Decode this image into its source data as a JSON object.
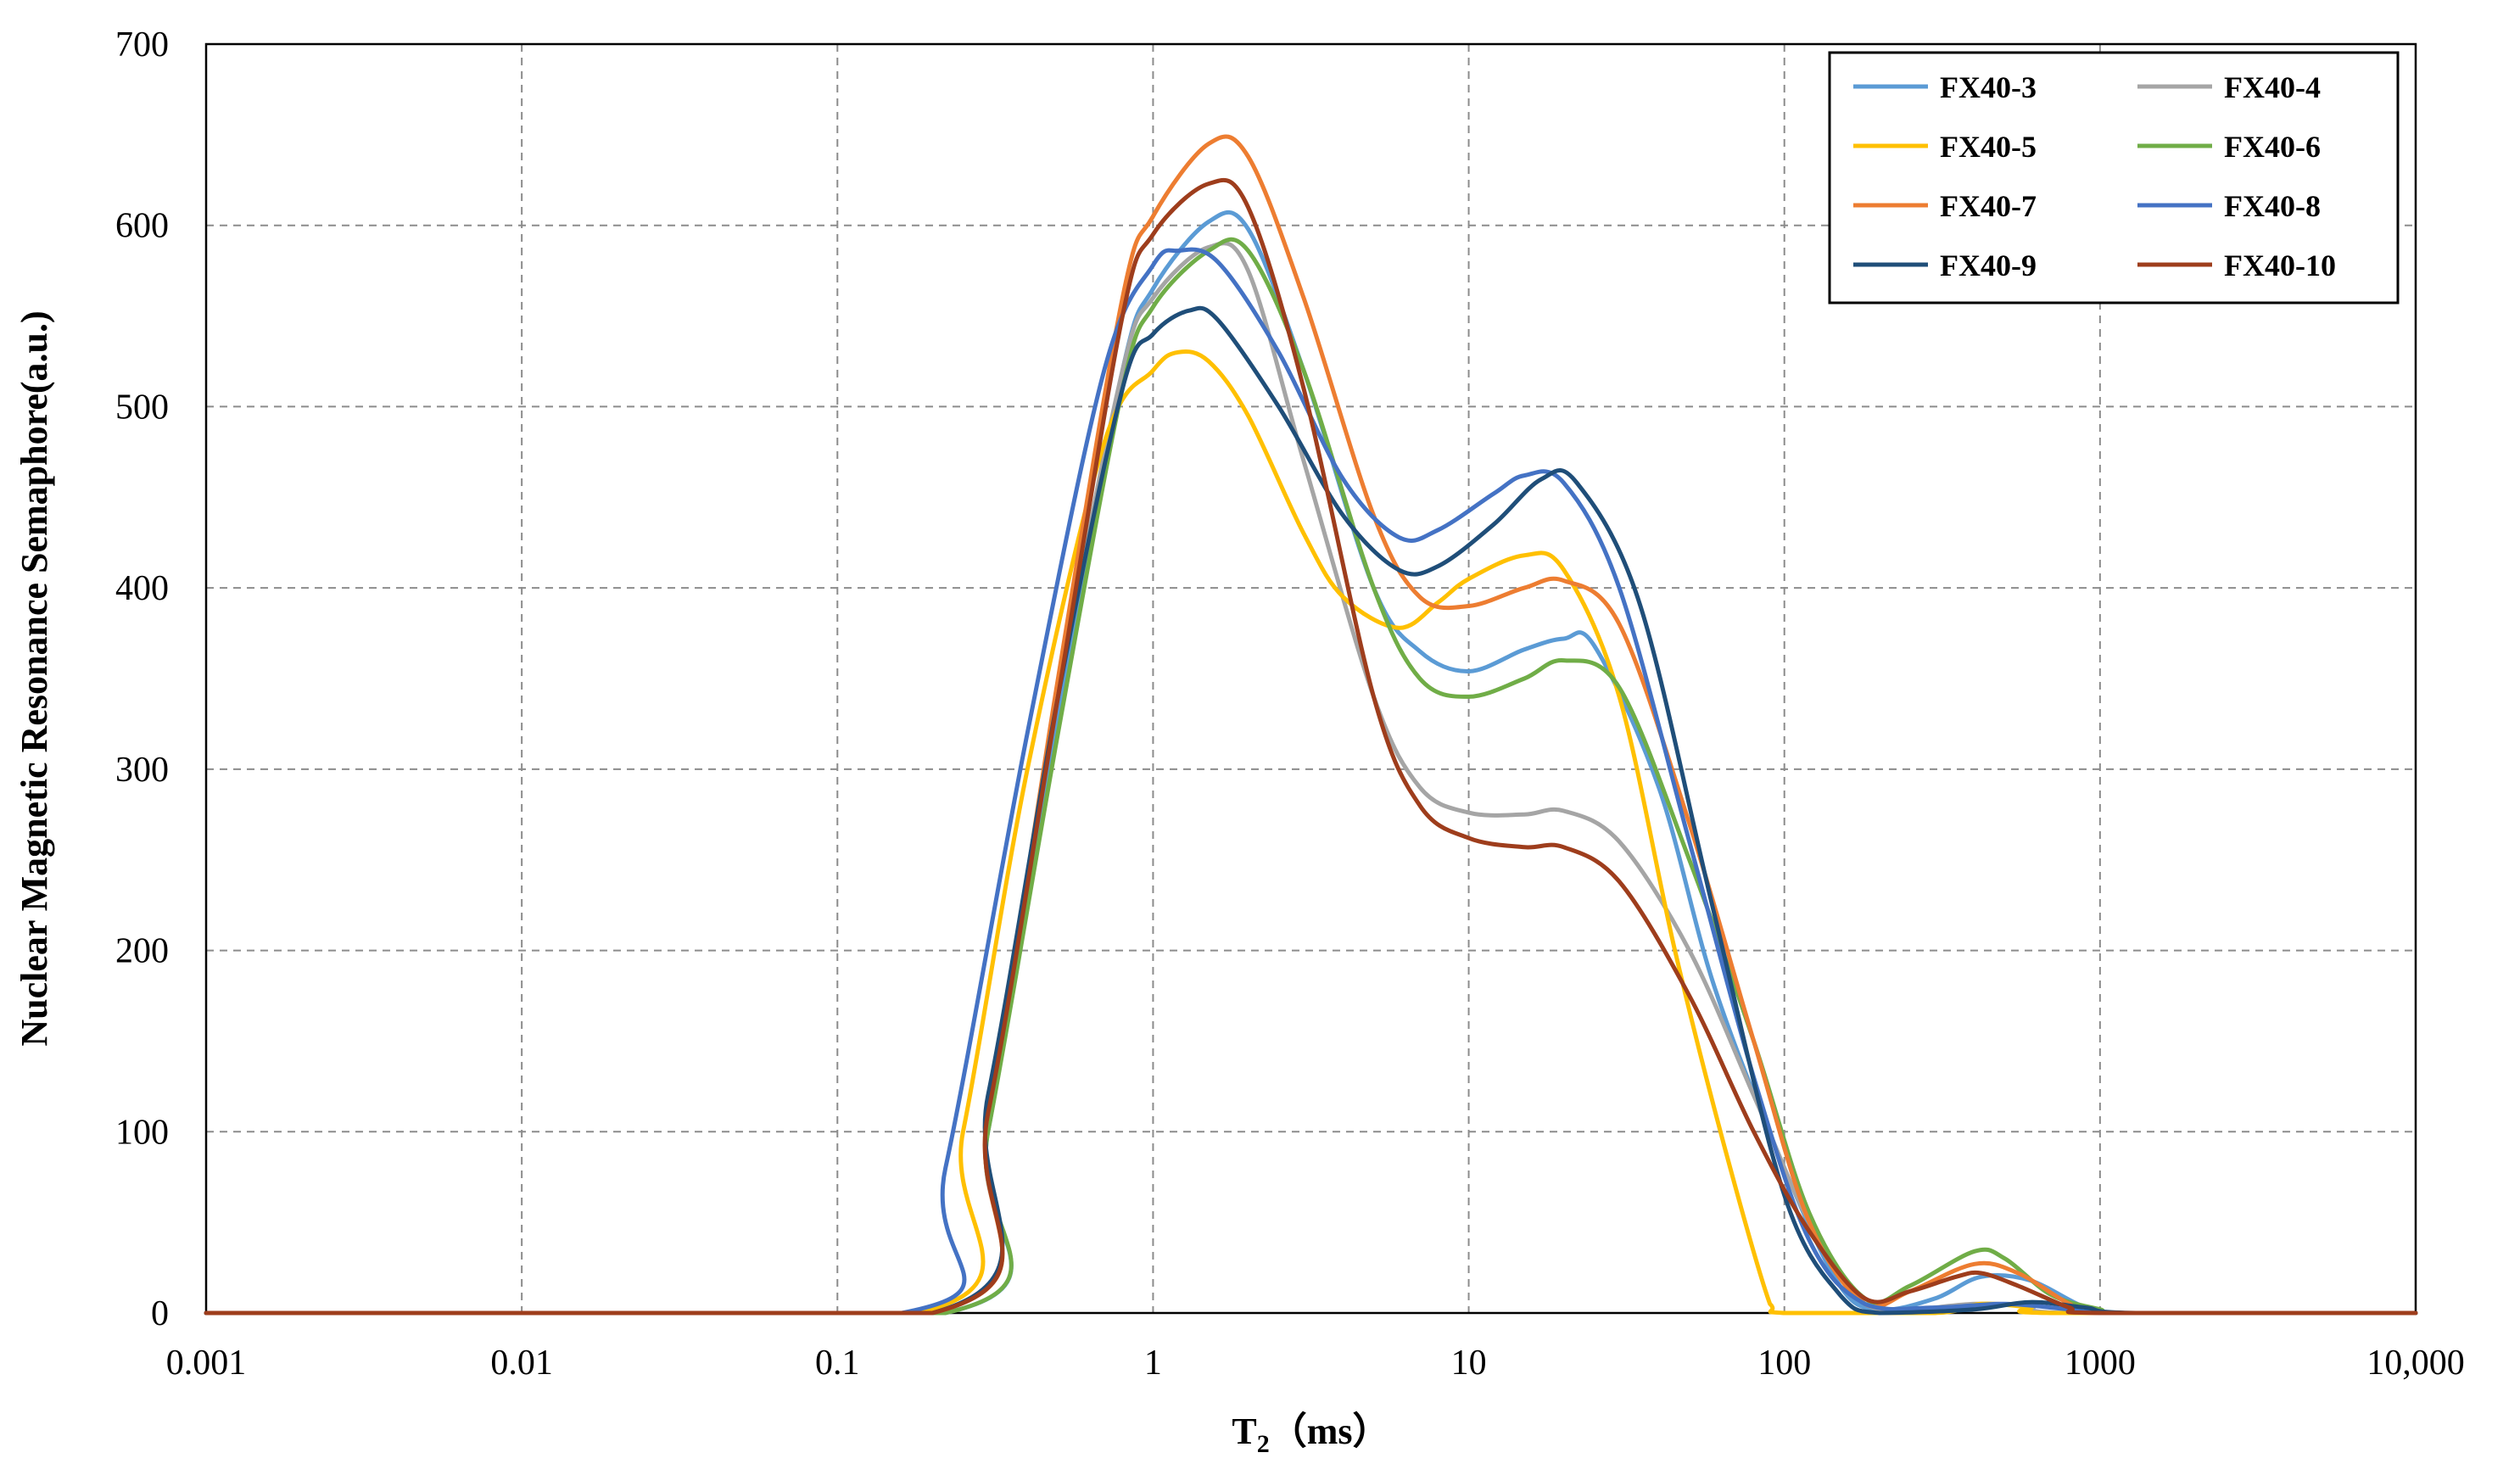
{
  "chart_data": {
    "type": "line",
    "xscale": "log",
    "xlabel": "T",
    "xlabel_sub": "2",
    "xlabel_unit": "（ms）",
    "ylabel": "Nuclear Magnetic Resonance Semaphore(a.u.)",
    "xlim": [
      0.001,
      10000
    ],
    "ylim": [
      0,
      700
    ],
    "x_ticks": [
      0.001,
      0.01,
      0.1,
      1,
      10,
      100,
      1000,
      10000
    ],
    "x_tick_labels": [
      "0.001",
      "0.01",
      "0.1",
      "1",
      "10",
      "100",
      "1000",
      "10,000"
    ],
    "y_ticks": [
      0,
      100,
      200,
      300,
      400,
      500,
      600,
      700
    ],
    "y_tick_labels": [
      "0",
      "100",
      "200",
      "300",
      "400",
      "500",
      "600",
      "700"
    ],
    "grid": true,
    "legend_position": "top-right",
    "series": [
      {
        "name": "FX40-3",
        "color": "#5b9bd5",
        "points": [
          [
            0.001,
            0
          ],
          [
            0.22,
            0
          ],
          [
            0.3,
            100
          ],
          [
            0.5,
            330
          ],
          [
            0.8,
            520
          ],
          [
            1,
            565
          ],
          [
            1.5,
            602
          ],
          [
            2,
            598
          ],
          [
            3,
            520
          ],
          [
            5,
            400
          ],
          [
            7,
            365
          ],
          [
            10,
            354
          ],
          [
            15,
            366
          ],
          [
            20,
            372
          ],
          [
            25,
            368
          ],
          [
            40,
            290
          ],
          [
            60,
            180
          ],
          [
            100,
            80
          ],
          [
            150,
            15
          ],
          [
            200,
            2
          ],
          [
            300,
            8
          ],
          [
            420,
            20
          ],
          [
            600,
            18
          ],
          [
            900,
            3
          ],
          [
            1200,
            0
          ],
          [
            10000,
            0
          ]
        ]
      },
      {
        "name": "FX40-4",
        "color": "#a5a5a5",
        "points": [
          [
            0.001,
            0
          ],
          [
            0.2,
            0
          ],
          [
            0.3,
            110
          ],
          [
            0.5,
            340
          ],
          [
            0.8,
            520
          ],
          [
            1,
            560
          ],
          [
            1.5,
            588
          ],
          [
            2,
            575
          ],
          [
            3,
            470
          ],
          [
            5,
            340
          ],
          [
            7,
            290
          ],
          [
            10,
            276
          ],
          [
            15,
            275
          ],
          [
            20,
            277
          ],
          [
            30,
            260
          ],
          [
            50,
            200
          ],
          [
            80,
            120
          ],
          [
            120,
            50
          ],
          [
            180,
            5
          ],
          [
            250,
            2
          ],
          [
            400,
            5
          ],
          [
            600,
            4
          ],
          [
            800,
            0
          ],
          [
            10000,
            0
          ]
        ]
      },
      {
        "name": "FX40-5",
        "color": "#ffc000",
        "points": [
          [
            0.001,
            0
          ],
          [
            0.18,
            0
          ],
          [
            0.25,
            100
          ],
          [
            0.4,
            300
          ],
          [
            0.7,
            480
          ],
          [
            1,
            520
          ],
          [
            1.2,
            530
          ],
          [
            1.5,
            525
          ],
          [
            2,
            495
          ],
          [
            3,
            430
          ],
          [
            4,
            395
          ],
          [
            6,
            378
          ],
          [
            8,
            392
          ],
          [
            10,
            405
          ],
          [
            15,
            418
          ],
          [
            20,
            410
          ],
          [
            30,
            340
          ],
          [
            45,
            200
          ],
          [
            65,
            90
          ],
          [
            90,
            5
          ],
          [
            100,
            0
          ],
          [
            300,
            0
          ],
          [
            420,
            5
          ],
          [
            600,
            3
          ],
          [
            700,
            0
          ],
          [
            10000,
            0
          ]
        ]
      },
      {
        "name": "FX40-6",
        "color": "#70ad47",
        "points": [
          [
            0.001,
            0
          ],
          [
            0.22,
            0
          ],
          [
            0.3,
            100
          ],
          [
            0.5,
            320
          ],
          [
            0.8,
            510
          ],
          [
            1,
            555
          ],
          [
            1.5,
            586
          ],
          [
            2,
            586
          ],
          [
            3,
            520
          ],
          [
            5,
            400
          ],
          [
            7,
            350
          ],
          [
            10,
            340
          ],
          [
            15,
            350
          ],
          [
            20,
            360
          ],
          [
            30,
            345
          ],
          [
            50,
            250
          ],
          [
            80,
            150
          ],
          [
            120,
            55
          ],
          [
            180,
            8
          ],
          [
            250,
            15
          ],
          [
            400,
            34
          ],
          [
            500,
            30
          ],
          [
            700,
            10
          ],
          [
            1000,
            2
          ],
          [
            1200,
            0
          ],
          [
            10000,
            0
          ]
        ]
      },
      {
        "name": "FX40-7",
        "color": "#ed7d31",
        "points": [
          [
            0.001,
            0
          ],
          [
            0.2,
            0
          ],
          [
            0.3,
            110
          ],
          [
            0.5,
            350
          ],
          [
            0.8,
            560
          ],
          [
            1,
            605
          ],
          [
            1.5,
            645
          ],
          [
            2,
            638
          ],
          [
            3,
            560
          ],
          [
            5,
            440
          ],
          [
            7,
            395
          ],
          [
            10,
            390
          ],
          [
            15,
            400
          ],
          [
            20,
            404
          ],
          [
            30,
            380
          ],
          [
            50,
            270
          ],
          [
            80,
            150
          ],
          [
            120,
            50
          ],
          [
            180,
            5
          ],
          [
            250,
            12
          ],
          [
            400,
            27
          ],
          [
            550,
            22
          ],
          [
            800,
            5
          ],
          [
            1000,
            0
          ],
          [
            10000,
            0
          ]
        ]
      },
      {
        "name": "FX40-8",
        "color": "#4472c4",
        "points": [
          [
            0.001,
            0
          ],
          [
            0.16,
            0
          ],
          [
            0.22,
            80
          ],
          [
            0.4,
            320
          ],
          [
            0.7,
            520
          ],
          [
            1,
            578
          ],
          [
            1.2,
            586
          ],
          [
            1.6,
            580
          ],
          [
            2.5,
            530
          ],
          [
            4,
            460
          ],
          [
            6,
            428
          ],
          [
            8,
            432
          ],
          [
            12,
            452
          ],
          [
            15,
            462
          ],
          [
            20,
            458
          ],
          [
            30,
            400
          ],
          [
            50,
            260
          ],
          [
            80,
            130
          ],
          [
            120,
            40
          ],
          [
            180,
            5
          ],
          [
            300,
            3
          ],
          [
            500,
            5
          ],
          [
            800,
            2
          ],
          [
            1200,
            0
          ],
          [
            10000,
            0
          ]
        ]
      },
      {
        "name": "FX40-9",
        "color": "#1f4e79",
        "points": [
          [
            0.001,
            0
          ],
          [
            0.2,
            0
          ],
          [
            0.3,
            120
          ],
          [
            0.5,
            340
          ],
          [
            0.8,
            510
          ],
          [
            1,
            540
          ],
          [
            1.3,
            553
          ],
          [
            1.6,
            548
          ],
          [
            2.5,
            500
          ],
          [
            4,
            440
          ],
          [
            6,
            410
          ],
          [
            8,
            412
          ],
          [
            12,
            435
          ],
          [
            17,
            460
          ],
          [
            22,
            458
          ],
          [
            35,
            390
          ],
          [
            60,
            220
          ],
          [
            100,
            65
          ],
          [
            150,
            10
          ],
          [
            200,
            0
          ],
          [
            400,
            2
          ],
          [
            600,
            6
          ],
          [
            900,
            3
          ],
          [
            1300,
            0
          ],
          [
            10000,
            0
          ]
        ]
      },
      {
        "name": "FX40-10",
        "color": "#9e3d1c",
        "points": [
          [
            0.001,
            0
          ],
          [
            0.2,
            0
          ],
          [
            0.3,
            110
          ],
          [
            0.5,
            340
          ],
          [
            0.8,
            550
          ],
          [
            1,
            595
          ],
          [
            1.5,
            623
          ],
          [
            2,
            610
          ],
          [
            3,
            510
          ],
          [
            5,
            340
          ],
          [
            7,
            280
          ],
          [
            10,
            262
          ],
          [
            15,
            257
          ],
          [
            20,
            257
          ],
          [
            30,
            238
          ],
          [
            50,
            175
          ],
          [
            80,
            100
          ],
          [
            120,
            45
          ],
          [
            180,
            8
          ],
          [
            250,
            12
          ],
          [
            350,
            20
          ],
          [
            420,
            22
          ],
          [
            550,
            15
          ],
          [
            800,
            3
          ],
          [
            1000,
            0
          ],
          [
            10000,
            0
          ]
        ]
      }
    ]
  }
}
